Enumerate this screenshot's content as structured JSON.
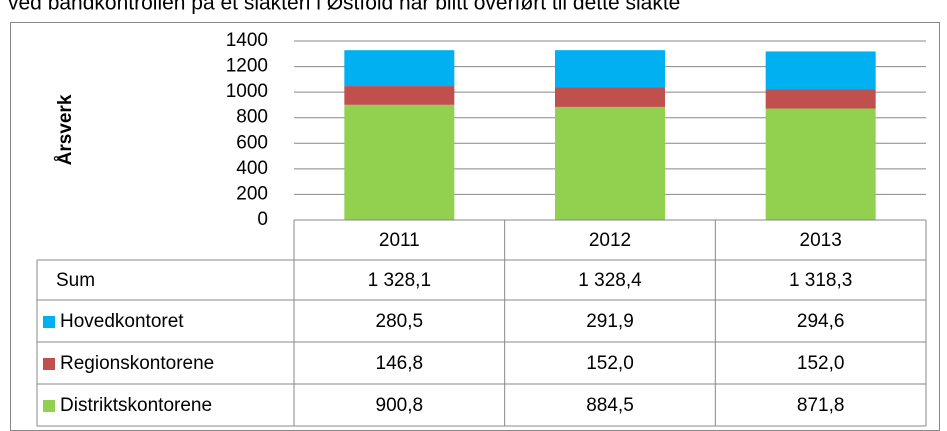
{
  "heading": "ved bandkontrollen på et slakteri i Østfold har blitt overført til dette slakte",
  "chart_data": {
    "type": "stacked_bar",
    "ylabel": "Årsverk",
    "categories": [
      "2011",
      "2012",
      "2013"
    ],
    "series": [
      {
        "name": "Distriktskontorene",
        "color": "#92d050",
        "values": [
          900.8,
          884.5,
          871.8
        ],
        "value_labels": [
          "900,8",
          "884,5",
          "871,8"
        ]
      },
      {
        "name": "Regionskontorene",
        "color": "#c0504d",
        "values": [
          146.8,
          152.0,
          152.0
        ],
        "value_labels": [
          "146,8",
          "152,0",
          "152,0"
        ]
      },
      {
        "name": "Hovedkontoret",
        "color": "#00b0f0",
        "values": [
          280.5,
          291.9,
          294.6
        ],
        "value_labels": [
          "280,5",
          "291,9",
          "294,6"
        ]
      }
    ],
    "sum": {
      "name": "Sum",
      "values": [
        1328.1,
        1328.4,
        1318.3
      ],
      "value_labels": [
        "1 328,1",
        "1 328,4",
        "1 318,3"
      ]
    },
    "ylim": [
      0,
      1400
    ],
    "yticks": [
      0,
      200,
      400,
      600,
      800,
      1000,
      1200,
      1400
    ],
    "grid": true
  }
}
